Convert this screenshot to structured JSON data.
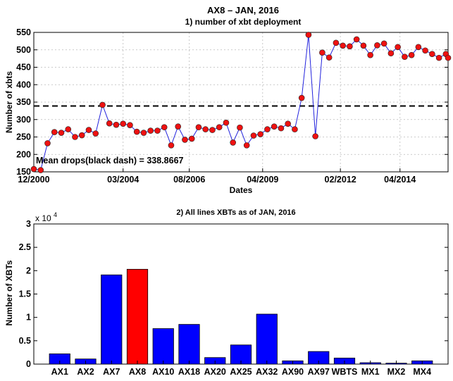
{
  "colors": {
    "line": "#2222dd",
    "marker_fill": "#ee1111",
    "bar_default": "#0000ff",
    "bar_highlight": "#ff0000",
    "mean_line": "#000000",
    "grid": "#bbbbbb"
  },
  "chart_data": [
    {
      "type": "line",
      "title": "AX8 – JAN, 2016",
      "subtitle": "1) number of xbt deployment",
      "xlabel": "Dates",
      "ylabel": "Number of xbts",
      "ylim": [
        150,
        550
      ],
      "yticks": [
        150,
        200,
        250,
        300,
        350,
        400,
        450,
        500,
        550
      ],
      "x_tick_labels": [
        {
          "label": "12/2000",
          "x": 2000.92
        },
        {
          "label": "03/2004",
          "x": 2004.17
        },
        {
          "label": "08/2006",
          "x": 2006.58
        },
        {
          "label": "04/2009",
          "x": 2009.25
        },
        {
          "label": "02/2012",
          "x": 2012.08
        },
        {
          "label": "04/2014",
          "x": 2014.25
        }
      ],
      "xlim": [
        2000.92,
        2016.0
      ],
      "grid": true,
      "mean_value": 338.8667,
      "annotation": "Mean drops(black dash) = 338.8667",
      "series": [
        {
          "x": [
            2000.92,
            2001.17,
            2001.42,
            2001.67,
            2001.92,
            2002.17,
            2002.42,
            2002.67,
            2002.92,
            2003.17,
            2003.42,
            2003.67,
            2003.92,
            2004.17,
            2004.42,
            2004.67,
            2004.92,
            2005.17,
            2005.42,
            2005.67,
            2005.92,
            2006.17,
            2006.42,
            2006.67,
            2006.92,
            2007.17,
            2007.42,
            2007.67,
            2007.92,
            2008.17,
            2008.42,
            2008.67,
            2008.92,
            2009.17,
            2009.42,
            2009.67,
            2009.92,
            2010.17,
            2010.42,
            2010.67,
            2010.92,
            2011.17,
            2011.42,
            2011.67,
            2011.92,
            2012.17,
            2012.42,
            2012.67,
            2012.92,
            2013.17,
            2013.42,
            2013.67,
            2013.92,
            2014.17,
            2014.42,
            2014.67,
            2014.92,
            2015.17,
            2015.42,
            2015.67,
            2015.92,
            2016.0
          ],
          "y": [
            158,
            155,
            232,
            264,
            262,
            272,
            250,
            255,
            270,
            260,
            342,
            289,
            285,
            288,
            284,
            265,
            262,
            268,
            268,
            278,
            226,
            280,
            242,
            245,
            278,
            272,
            270,
            278,
            291,
            234,
            277,
            226,
            254,
            258,
            272,
            280,
            275,
            288,
            272,
            362,
            543,
            252,
            492,
            478,
            520,
            512,
            510,
            530,
            512,
            485,
            513,
            518,
            490,
            508,
            480,
            485,
            508,
            498,
            488,
            477,
            488,
            477
          ]
        }
      ]
    },
    {
      "type": "bar",
      "title": "2) All lines XBTs as of JAN, 2016",
      "xlabel": "",
      "ylabel": "Number of XBTs",
      "y_multiplier_label": "x 10",
      "y_multiplier_exponent": "4",
      "ylim": [
        0,
        3
      ],
      "yticks": [
        "0",
        "0.5",
        "1",
        "1.5",
        "2",
        "2.5",
        "3"
      ],
      "categories": [
        "AX1",
        "AX2",
        "AX7",
        "AX8",
        "AX10",
        "AX18",
        "AX20",
        "AX25",
        "AX32",
        "AX90",
        "AX97",
        "WBTS",
        "MX1",
        "MX2",
        "MX4"
      ],
      "values": [
        0.22,
        0.11,
        1.91,
        2.03,
        0.76,
        0.85,
        0.14,
        0.41,
        1.07,
        0.07,
        0.27,
        0.13,
        0.03,
        0.02,
        0.07
      ],
      "highlight": "AX8"
    }
  ]
}
